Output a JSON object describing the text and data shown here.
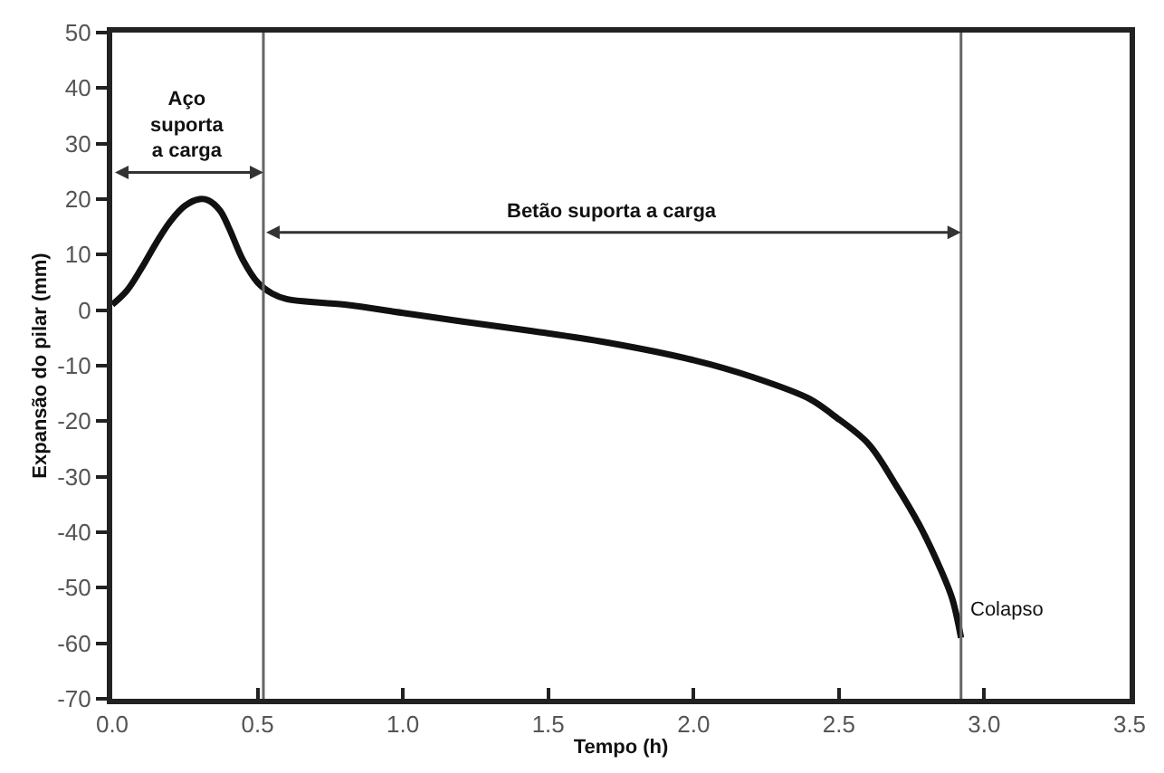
{
  "chart_data": {
    "type": "line",
    "xlabel": "Tempo (h)",
    "ylabel": "Expansão do pilar (mm)",
    "x": [
      0,
      0.05,
      0.1,
      0.15,
      0.2,
      0.25,
      0.3,
      0.33,
      0.37,
      0.4,
      0.45,
      0.5,
      0.55,
      0.6,
      0.8,
      1.0,
      1.2,
      1.45,
      1.7,
      2.0,
      2.2,
      2.4,
      2.48,
      2.6,
      2.69,
      2.78,
      2.85,
      2.89,
      2.92
    ],
    "series": [
      {
        "color": "#111111",
        "values": [
          1,
          3.5,
          7.5,
          12,
          16,
          18.8,
          20,
          19.8,
          18,
          15,
          9,
          5,
          3,
          2,
          1,
          -0.5,
          -2,
          -3.8,
          -5.8,
          -9,
          -12,
          -16,
          -18.9,
          -24,
          -31,
          -39,
          -46.7,
          -52,
          -59
        ]
      }
    ],
    "annotations": [
      "Aço\nsuporta\na carga",
      "Betão suporta a carga"
    ],
    "ref_lines": [
      {
        "axis": "x",
        "value": 0.52,
        "label": null
      },
      {
        "axis": "x",
        "value": 2.92,
        "label": "Colapso"
      }
    ],
    "xlim": [
      0,
      3.5
    ],
    "xticks": [
      {
        "value": 0,
        "label": "0.0"
      },
      0.5,
      {
        "value": 1,
        "label": "1.0"
      },
      1.5,
      {
        "value": 2,
        "label": "2.0"
      },
      2.5,
      {
        "value": 3,
        "label": "3.0"
      },
      3.5
    ],
    "ylim": [
      -70,
      50
    ],
    "yticks": [
      -70,
      -60,
      -50,
      -40,
      -30,
      -20,
      -10,
      0,
      10,
      20,
      30,
      40,
      50
    ],
    "legend": false,
    "marker": "none",
    "line_style": "solid"
  }
}
